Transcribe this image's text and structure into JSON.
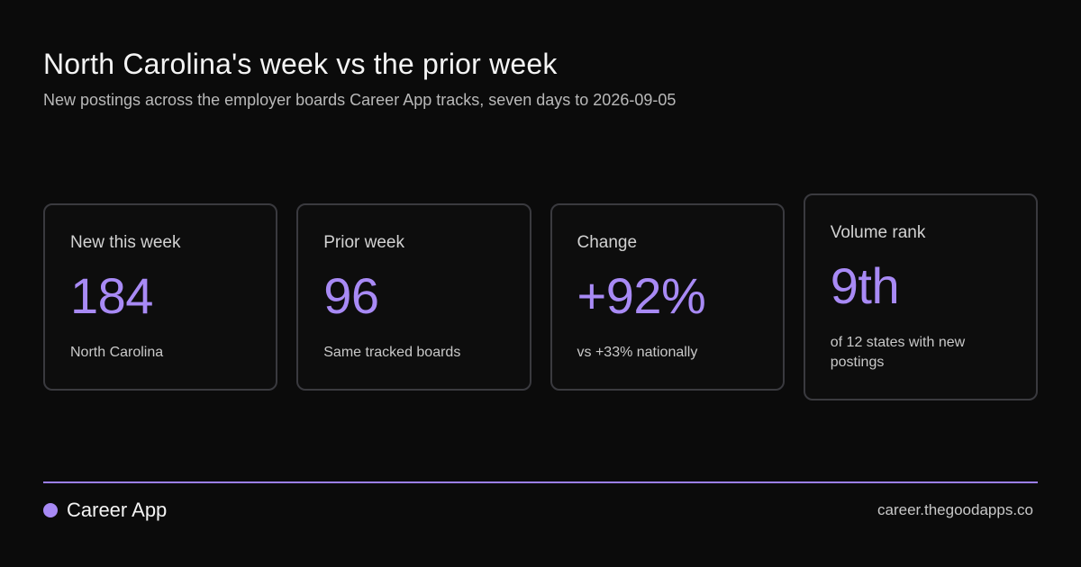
{
  "header": {
    "title": "North Carolina's week vs the prior week",
    "subtitle": "New postings across the employer boards Career App tracks, seven days to 2026-09-05"
  },
  "cards": [
    {
      "label": "New this week",
      "value": "184",
      "note": "North Carolina"
    },
    {
      "label": "Prior week",
      "value": "96",
      "note": "Same tracked boards"
    },
    {
      "label": "Change",
      "value": "+92%",
      "note": "vs +33% nationally"
    },
    {
      "label": "Volume rank",
      "value": "9th",
      "note": "of 12 states with new postings"
    }
  ],
  "footer": {
    "brand": "Career App",
    "url": "career.thegoodapps.co"
  },
  "colors": {
    "accent": "#a88af5",
    "background": "#0b0b0b",
    "card_border": "#3a3a3f"
  },
  "icons": {
    "brand_mark": "brand-dot-icon"
  }
}
